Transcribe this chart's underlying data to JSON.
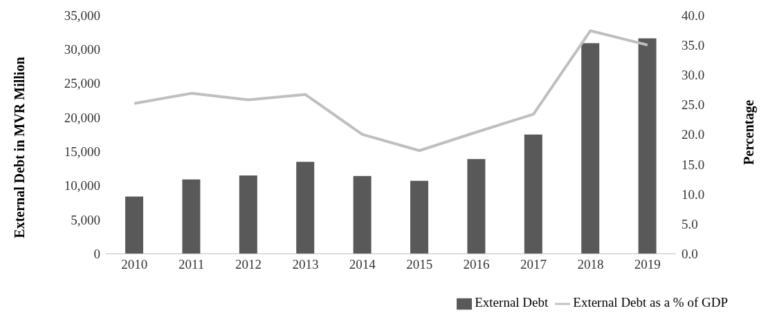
{
  "chart_data": {
    "type": "bar",
    "categories": [
      "2010",
      "2011",
      "2012",
      "2013",
      "2014",
      "2015",
      "2016",
      "2017",
      "2018",
      "2019"
    ],
    "series": [
      {
        "name": "External Debt",
        "color": "#595959",
        "values": [
          8400,
          10900,
          11500,
          13500,
          11400,
          10700,
          13900,
          17500,
          30900,
          31600
        ]
      },
      {
        "name": "External Debt as a % of GDP",
        "type": "line",
        "axis": "y2",
        "color": "#bfbfbf",
        "values": [
          25.2,
          26.9,
          25.8,
          26.7,
          20.0,
          17.3,
          20.4,
          23.4,
          37.4,
          35.0
        ]
      }
    ],
    "ylabel": "External Debt in MVR Million",
    "y2label": "Percentage",
    "ylim": [
      0,
      35000
    ],
    "yticks": [
      {
        "value": 0,
        "label": "0"
      },
      {
        "value": 5000,
        "label": "5,000"
      },
      {
        "value": 10000,
        "label": "10,000"
      },
      {
        "value": 15000,
        "label": "15,000"
      },
      {
        "value": 20000,
        "label": "20,000"
      },
      {
        "value": 25000,
        "label": "25,000"
      },
      {
        "value": 30000,
        "label": "30,000"
      },
      {
        "value": 35000,
        "label": "35,000"
      }
    ],
    "y2lim": [
      0,
      40
    ],
    "y2ticks": [
      {
        "value": 0,
        "label": "0.0"
      },
      {
        "value": 5,
        "label": "5.0"
      },
      {
        "value": 10,
        "label": "10.0"
      },
      {
        "value": 15,
        "label": "15.0"
      },
      {
        "value": 20,
        "label": "20.0"
      },
      {
        "value": 25,
        "label": "25.0"
      },
      {
        "value": 30,
        "label": "30.0"
      },
      {
        "value": 35,
        "label": "35.0"
      },
      {
        "value": 40,
        "label": "40.0"
      }
    ],
    "grid": false,
    "legend": "bottom right",
    "marker": "none",
    "line_style": "solid"
  }
}
